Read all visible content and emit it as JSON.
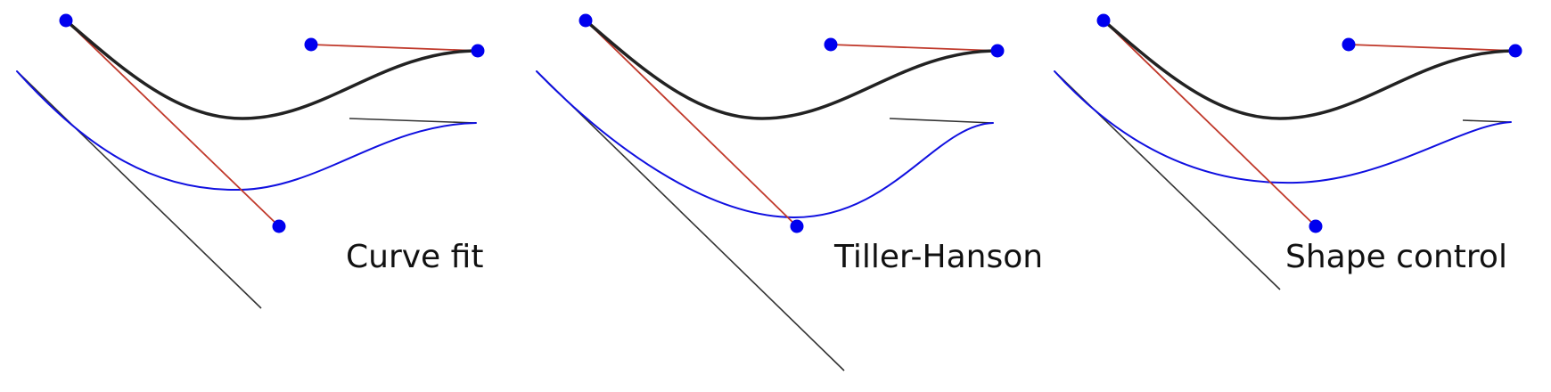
{
  "colors": {
    "original_curve": "#222222",
    "offset_curve": "#1010e0",
    "control_handle": "#c0392b",
    "control_point": "#0000ee",
    "offset_tangent": "#333333",
    "background": "#ffffff"
  },
  "panels": [
    {
      "id": "curve-fit",
      "label": "Curve fit"
    },
    {
      "id": "tiller-hanson",
      "label": "Tiller-Hanson"
    },
    {
      "id": "shape-control",
      "label": "Shape control"
    }
  ]
}
